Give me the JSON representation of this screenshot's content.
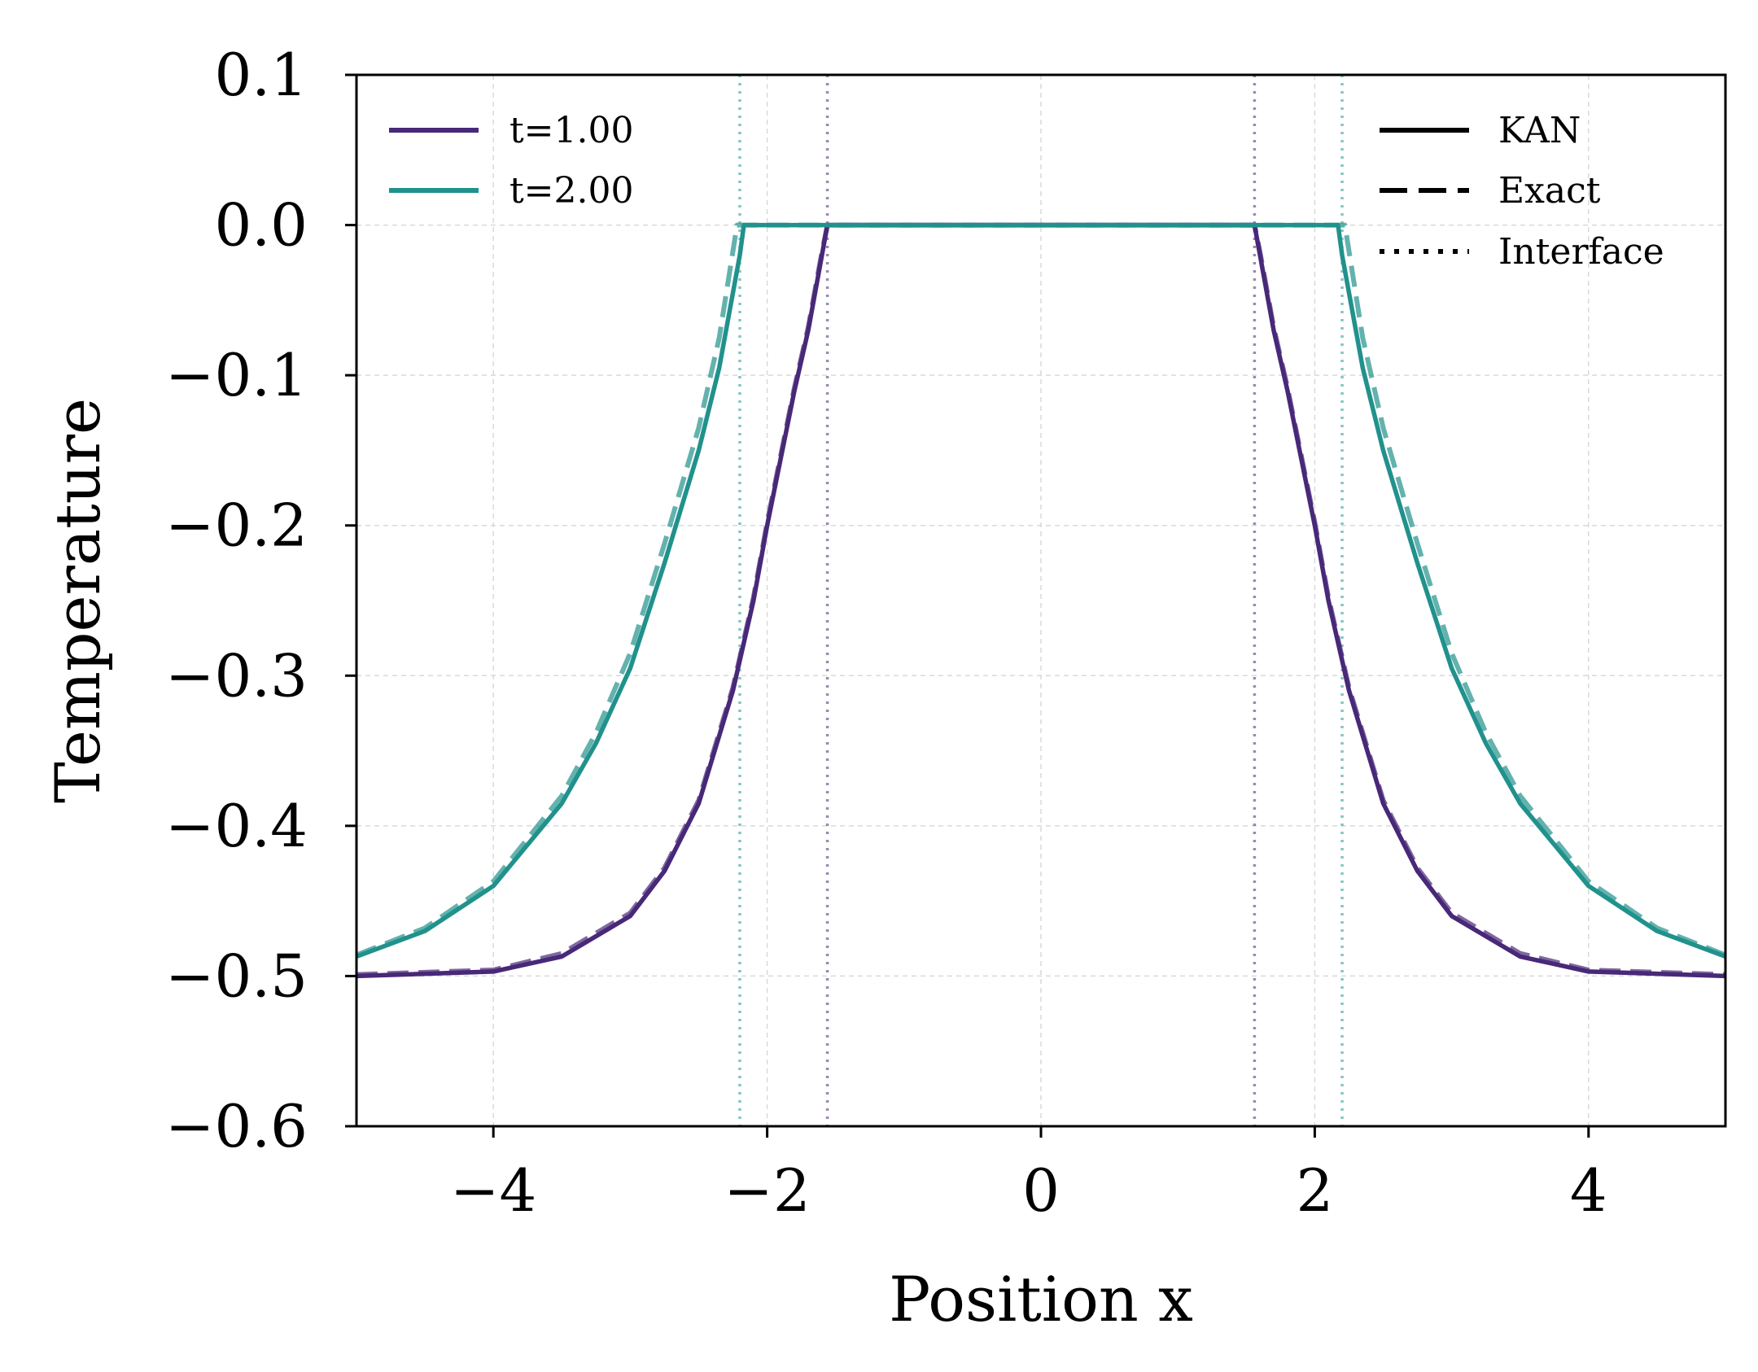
{
  "chart_data": {
    "type": "line",
    "title": "",
    "xlabel": "Position x",
    "ylabel": "Temperature",
    "xlim": [
      -5,
      5
    ],
    "ylim": [
      -0.6,
      0.1
    ],
    "xticks": [
      -4,
      -2,
      0,
      2,
      4
    ],
    "xtick_labels": [
      "−4",
      "−2",
      "0",
      "2",
      "4"
    ],
    "yticks": [
      0.1,
      0.0,
      -0.1,
      -0.2,
      -0.3,
      -0.4,
      -0.5,
      -0.6
    ],
    "ytick_labels": [
      "0.1",
      "0.0",
      "−0.1",
      "−0.2",
      "−0.3",
      "−0.4",
      "−0.5",
      "−0.6"
    ],
    "grid": true,
    "series": [
      {
        "name": "t=1.00",
        "color": "#482878",
        "interface": 1.56,
        "kan": {
          "x": [
            -5.0,
            -4.0,
            -3.5,
            -3.0,
            -2.75,
            -2.5,
            -2.25,
            -2.1,
            -2.0,
            -1.9,
            -1.8,
            -1.7,
            -1.6,
            -1.56,
            1.56,
            1.6,
            1.7,
            1.8,
            1.9,
            2.0,
            2.1,
            2.25,
            2.5,
            2.75,
            3.0,
            3.5,
            4.0,
            5.0
          ],
          "y": [
            -0.5,
            -0.497,
            -0.487,
            -0.46,
            -0.43,
            -0.385,
            -0.31,
            -0.25,
            -0.2,
            -0.155,
            -0.11,
            -0.07,
            -0.02,
            0.0,
            0.0,
            -0.02,
            -0.07,
            -0.11,
            -0.155,
            -0.2,
            -0.25,
            -0.31,
            -0.385,
            -0.43,
            -0.46,
            -0.487,
            -0.497,
            -0.5
          ]
        },
        "exact": {
          "x": [
            -5.0,
            -4.0,
            -3.5,
            -3.0,
            -2.75,
            -2.5,
            -2.25,
            -2.1,
            -2.0,
            -1.9,
            -1.8,
            -1.7,
            -1.6,
            -1.56,
            1.56,
            1.6,
            1.7,
            1.8,
            1.9,
            2.0,
            2.1,
            2.25,
            2.5,
            2.75,
            3.0,
            3.5,
            4.0,
            5.0
          ],
          "y": [
            -0.499,
            -0.496,
            -0.485,
            -0.458,
            -0.428,
            -0.383,
            -0.308,
            -0.248,
            -0.198,
            -0.153,
            -0.108,
            -0.068,
            -0.018,
            0.0,
            0.0,
            -0.018,
            -0.068,
            -0.108,
            -0.153,
            -0.198,
            -0.248,
            -0.308,
            -0.383,
            -0.428,
            -0.458,
            -0.485,
            -0.496,
            -0.499
          ]
        }
      },
      {
        "name": "t=2.00",
        "color": "#21918c",
        "interface": 2.2,
        "kan": {
          "x": [
            -5.0,
            -4.5,
            -4.0,
            -3.5,
            -3.25,
            -3.0,
            -2.75,
            -2.5,
            -2.35,
            -2.2,
            -2.17,
            2.17,
            2.2,
            2.35,
            2.5,
            2.75,
            3.0,
            3.25,
            3.5,
            4.0,
            4.5,
            5.0
          ],
          "y": [
            -0.487,
            -0.47,
            -0.44,
            -0.385,
            -0.345,
            -0.295,
            -0.225,
            -0.15,
            -0.095,
            -0.02,
            0.0,
            0.0,
            -0.02,
            -0.095,
            -0.15,
            -0.225,
            -0.295,
            -0.345,
            -0.385,
            -0.44,
            -0.47,
            -0.487
          ]
        },
        "exact": {
          "x": [
            -5.0,
            -4.5,
            -4.0,
            -3.5,
            -3.25,
            -3.0,
            -2.75,
            -2.5,
            -2.35,
            -2.22,
            2.22,
            2.35,
            2.5,
            2.75,
            3.0,
            3.25,
            3.5,
            4.0,
            4.5,
            5.0
          ],
          "y": [
            -0.486,
            -0.468,
            -0.437,
            -0.38,
            -0.338,
            -0.285,
            -0.212,
            -0.135,
            -0.075,
            0.0,
            0.0,
            -0.075,
            -0.135,
            -0.212,
            -0.285,
            -0.338,
            -0.38,
            -0.437,
            -0.468,
            -0.486
          ]
        }
      }
    ],
    "legend_series": {
      "placement": "top-left",
      "entries": [
        "t=1.00",
        "t=2.00"
      ]
    },
    "legend_styles": {
      "placement": "top-right",
      "entries": [
        "KAN",
        "Exact",
        "Interface"
      ]
    }
  }
}
